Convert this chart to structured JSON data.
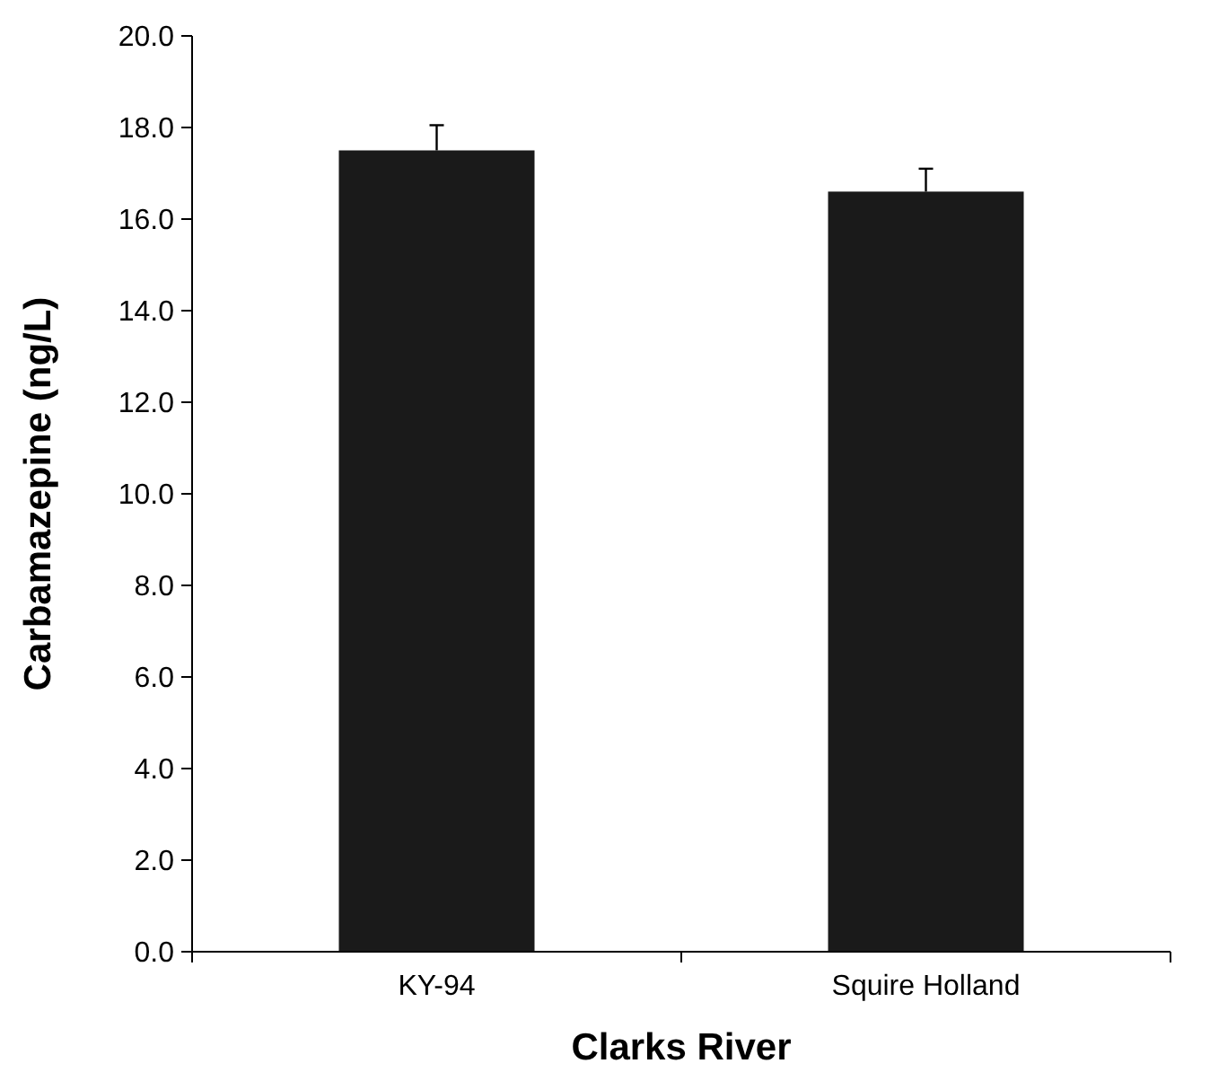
{
  "chart_data": {
    "type": "bar",
    "xlabel": "Clarks River",
    "ylabel": "Carbamazepine (ng/L)",
    "categories": [
      "KY-94",
      "Squire Holland"
    ],
    "values": [
      17.5,
      16.6
    ],
    "errors": [
      [
        17.5,
        18.05
      ],
      [
        16.6,
        17.1
      ]
    ],
    "color": "#1a1a1a",
    "ylim": [
      0,
      20
    ],
    "yticks": [
      {
        "value": 0,
        "label": "0.0"
      },
      {
        "value": 2,
        "label": "2.0"
      },
      {
        "value": 4,
        "label": "4.0"
      },
      {
        "value": 6,
        "label": "6.0"
      },
      {
        "value": 8,
        "label": "8.0"
      },
      {
        "value": 10,
        "label": "10.0"
      },
      {
        "value": 12,
        "label": "12.0"
      },
      {
        "value": 14,
        "label": "14.0"
      },
      {
        "value": 16,
        "label": "16.0"
      },
      {
        "value": 18,
        "label": "18.0"
      },
      {
        "value": 20,
        "label": "20.0"
      }
    ],
    "grid": false
  }
}
